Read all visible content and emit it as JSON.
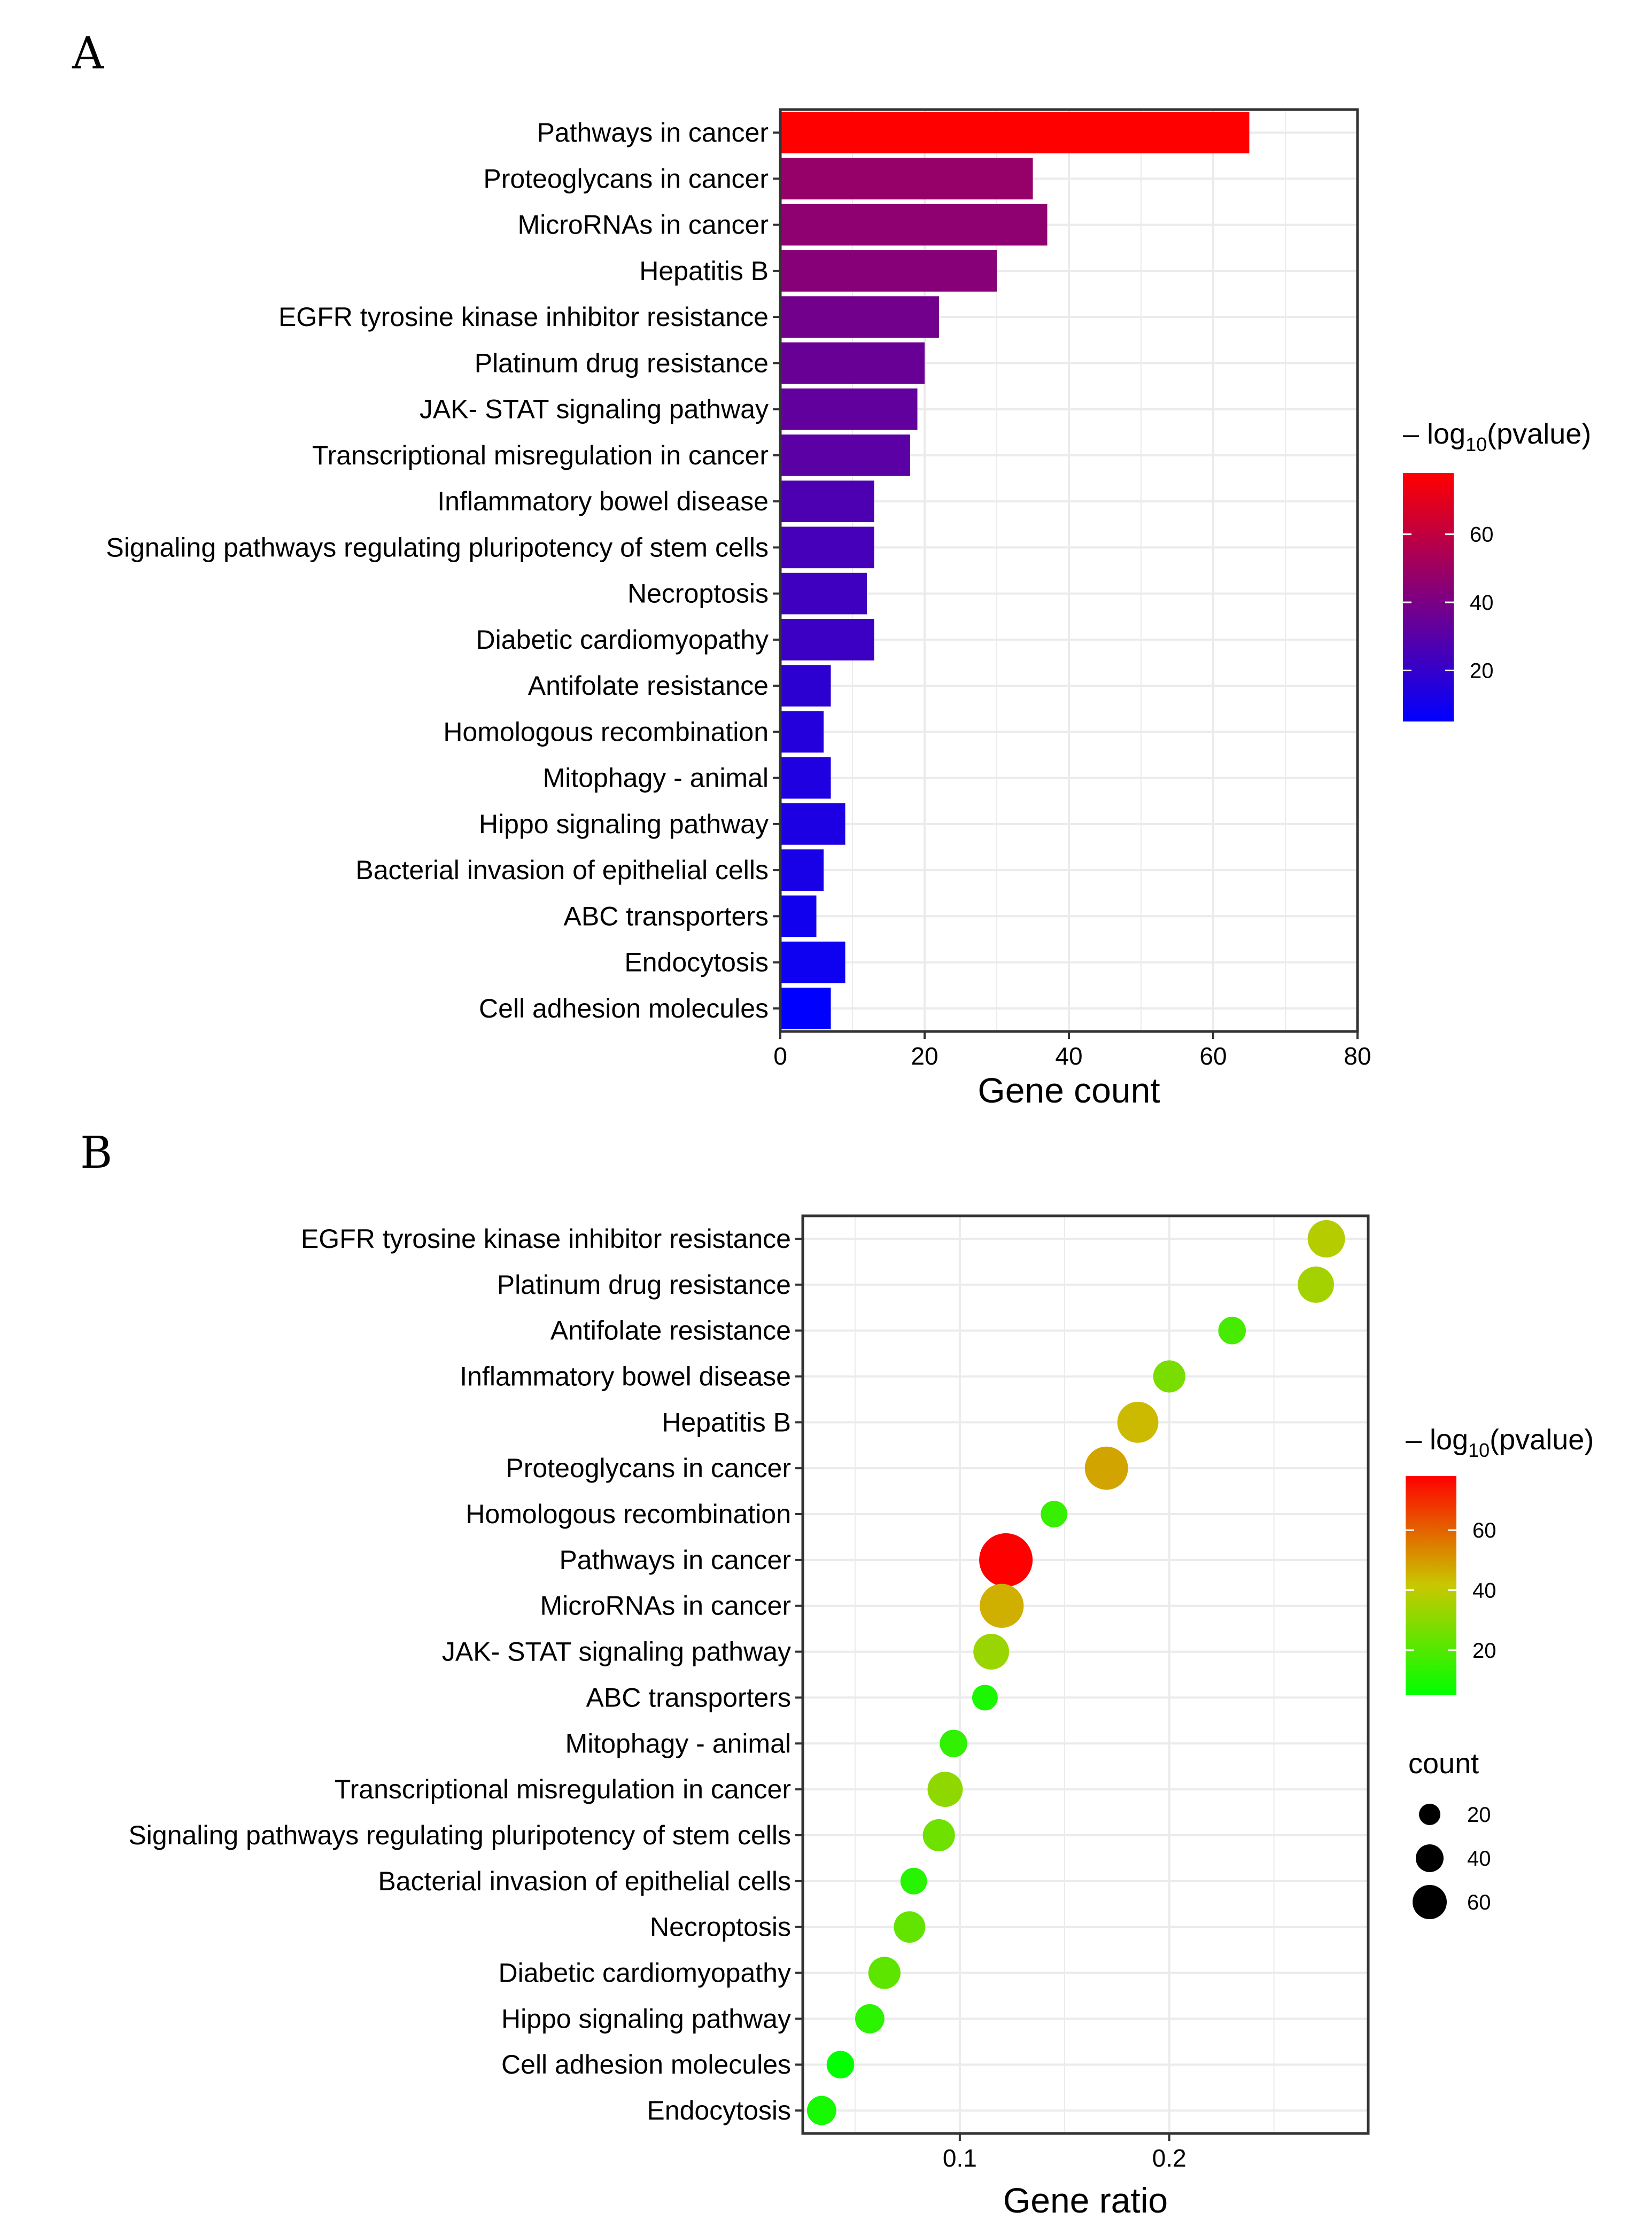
{
  "chart_data": [
    {
      "panel": "A",
      "type": "bar",
      "orientation": "horizontal",
      "categories": [
        "Pathways in cancer",
        "Proteoglycans in cancer",
        "MicroRNAs in cancer",
        "Hepatitis B",
        "EGFR tyrosine kinase inhibitor resistance",
        "Platinum drug resistance",
        "JAK- STAT signaling pathway",
        "Transcriptional misregulation in cancer",
        "Inflammatory bowel disease",
        "Signaling pathways regulating pluripotency of stem cells",
        "Necroptosis",
        "Diabetic cardiomyopathy",
        "Antifolate resistance",
        "Homologous recombination",
        "Mitophagy -  animal",
        "Hippo signaling pathway",
        "Bacterial invasion of epithelial cells",
        "ABC transporters",
        "Endocytosis",
        "Cell adhesion molecules"
      ],
      "values": [
        65,
        35,
        37,
        30,
        22,
        20,
        19,
        18,
        13,
        13,
        12,
        13,
        7,
        6,
        7,
        9,
        6,
        5,
        9,
        7
      ],
      "color_values": [
        78,
        48,
        46,
        44,
        38,
        35,
        33,
        31,
        27,
        25,
        23,
        22,
        18,
        15,
        14,
        13,
        12,
        10,
        9,
        5
      ],
      "xlabel": "Gene count",
      "xlim": [
        0,
        80
      ],
      "xticks": [
        0,
        20,
        40,
        60,
        80
      ],
      "grid": true,
      "legend": {
        "title_prefix": "– log",
        "title_sub": "10",
        "title_suffix": "(pvalue)",
        "ticks": [
          60,
          40,
          20
        ],
        "range": [
          5,
          78
        ],
        "color_low": "#0000ff",
        "color_high": "#ff0000",
        "placement": "right"
      }
    },
    {
      "panel": "B",
      "type": "scatter",
      "categories": [
        "EGFR tyrosine kinase inhibitor resistance",
        "Platinum drug resistance",
        "Antifolate resistance",
        "Inflammatory bowel disease",
        "Hepatitis B",
        "Proteoglycans in cancer",
        "Homologous recombination",
        "Pathways in cancer",
        "MicroRNAs in cancer",
        "JAK- STAT signaling pathway",
        "ABC transporters",
        "Mitophagy -  animal",
        "Transcriptional misregulation in cancer",
        "Signaling pathways regulating pluripotency of stem cells",
        "Bacterial invasion of epithelial cells",
        "Necroptosis",
        "Diabetic cardiomyopathy",
        "Hippo signaling pathway",
        "Cell adhesion molecules",
        "Endocytosis"
      ],
      "x": [
        0.275,
        0.27,
        0.23,
        0.2,
        0.185,
        0.17,
        0.145,
        0.122,
        0.12,
        0.115,
        0.112,
        0.097,
        0.093,
        0.09,
        0.078,
        0.076,
        0.064,
        0.057,
        0.043,
        0.034
      ],
      "count": [
        22,
        20,
        7,
        13,
        30,
        35,
        6,
        65,
        37,
        19,
        5,
        7,
        18,
        13,
        6,
        12,
        13,
        9,
        7,
        9
      ],
      "color_values": [
        38,
        35,
        18,
        27,
        44,
        48,
        15,
        78,
        46,
        33,
        10,
        14,
        31,
        25,
        12,
        23,
        22,
        13,
        5,
        9
      ],
      "xlabel": "Gene ratio",
      "xlim": [
        0.025,
        0.295
      ],
      "xticks": [
        0.1,
        0.2
      ],
      "xtick_labels": [
        "0.1",
        "0.2"
      ],
      "grid": true,
      "legend": {
        "title_prefix": "– log",
        "title_sub": "10",
        "title_suffix": "(pvalue)",
        "ticks": [
          60,
          40,
          20
        ],
        "range": [
          5,
          78
        ],
        "color_low": "#00ff00",
        "color_mid": "#c8c800",
        "color_high": "#ff0000",
        "placement": "right",
        "size_title": "count",
        "size_ticks": [
          20,
          40,
          60
        ]
      }
    }
  ],
  "panel_labels": {
    "a": "A",
    "b": "B"
  }
}
